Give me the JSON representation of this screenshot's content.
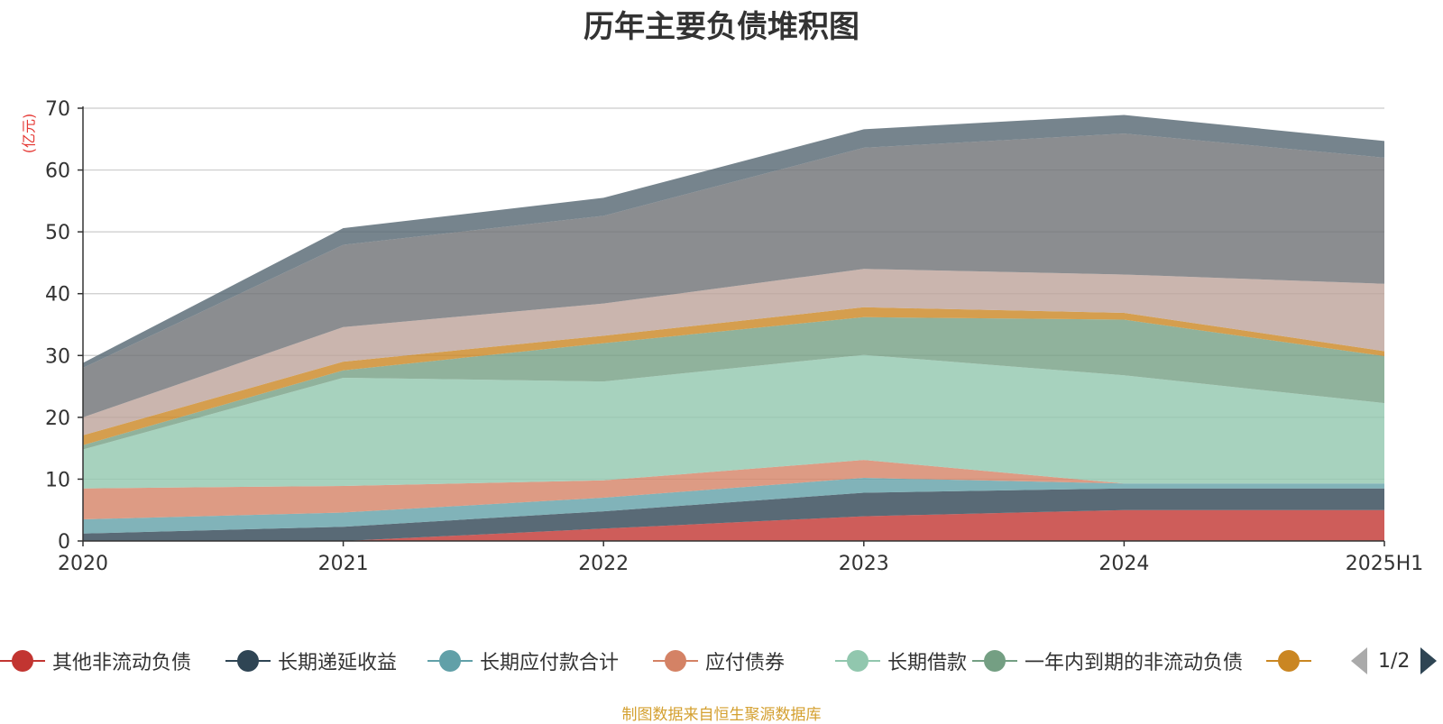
{
  "title": "历年主要负债堆积图",
  "unit_label": "(亿元)",
  "source": "制图数据来自恒生聚源数据库",
  "legend": {
    "items": [
      {
        "label": "其他非流动负债",
        "color": "#c23531"
      },
      {
        "label": "长期递延收益",
        "color": "#2f4554"
      },
      {
        "label": "长期应付款合计",
        "color": "#61a0a8"
      },
      {
        "label": "应付债券",
        "color": "#d48265"
      },
      {
        "label": "长期借款",
        "color": "#91c7ae"
      },
      {
        "label": "一年内到期的非流动负债",
        "color": "#749f83"
      },
      {
        "label": "",
        "color": "#ca8622"
      }
    ],
    "page": "1/2"
  },
  "chart_data": {
    "type": "area",
    "stacked": true,
    "categories": [
      "2020",
      "2021",
      "2022",
      "2023",
      "2024",
      "2025H1"
    ],
    "ylim": [
      0,
      70
    ],
    "yticks": [
      0,
      10,
      20,
      30,
      40,
      50,
      60,
      70
    ],
    "grid": true,
    "series": [
      {
        "name": "其他非流动负债",
        "color": "#c23531",
        "values": [
          0,
          0,
          2.0,
          4.0,
          5.0,
          5.0
        ]
      },
      {
        "name": "长期递延收益",
        "color": "#2f4554",
        "values": [
          1.2,
          2.3,
          2.8,
          3.8,
          3.5,
          3.5
        ]
      },
      {
        "name": "长期应付款合计",
        "color": "#61a0a8",
        "values": [
          2.3,
          2.3,
          2.2,
          2.4,
          0.8,
          0.8
        ]
      },
      {
        "name": "应付债券",
        "color": "#d48265",
        "values": [
          5.0,
          4.3,
          2.8,
          2.9,
          0,
          0
        ]
      },
      {
        "name": "长期借款",
        "color": "#91c7ae",
        "values": [
          6.3,
          17.5,
          16.0,
          17.0,
          17.5,
          13.0
        ]
      },
      {
        "name": "一年内到期的非流动负债",
        "color": "#749f83",
        "values": [
          0.7,
          1.2,
          6.2,
          6.1,
          9.0,
          7.6
        ]
      },
      {
        "name": "",
        "color": "#ca8622",
        "values": [
          1.6,
          1.4,
          1.2,
          1.6,
          1.1,
          0.8
        ]
      },
      {
        "name": "",
        "color": "#bda29a",
        "values": [
          2.9,
          5.6,
          5.2,
          6.2,
          6.2,
          10.9
        ]
      },
      {
        "name": "",
        "color": "#6e7074",
        "values": [
          8.0,
          13.3,
          14.2,
          19.6,
          22.8,
          20.4
        ]
      },
      {
        "name": "",
        "color": "#546570",
        "values": [
          0.8,
          2.7,
          2.9,
          3.0,
          3.0,
          2.7
        ]
      }
    ]
  }
}
